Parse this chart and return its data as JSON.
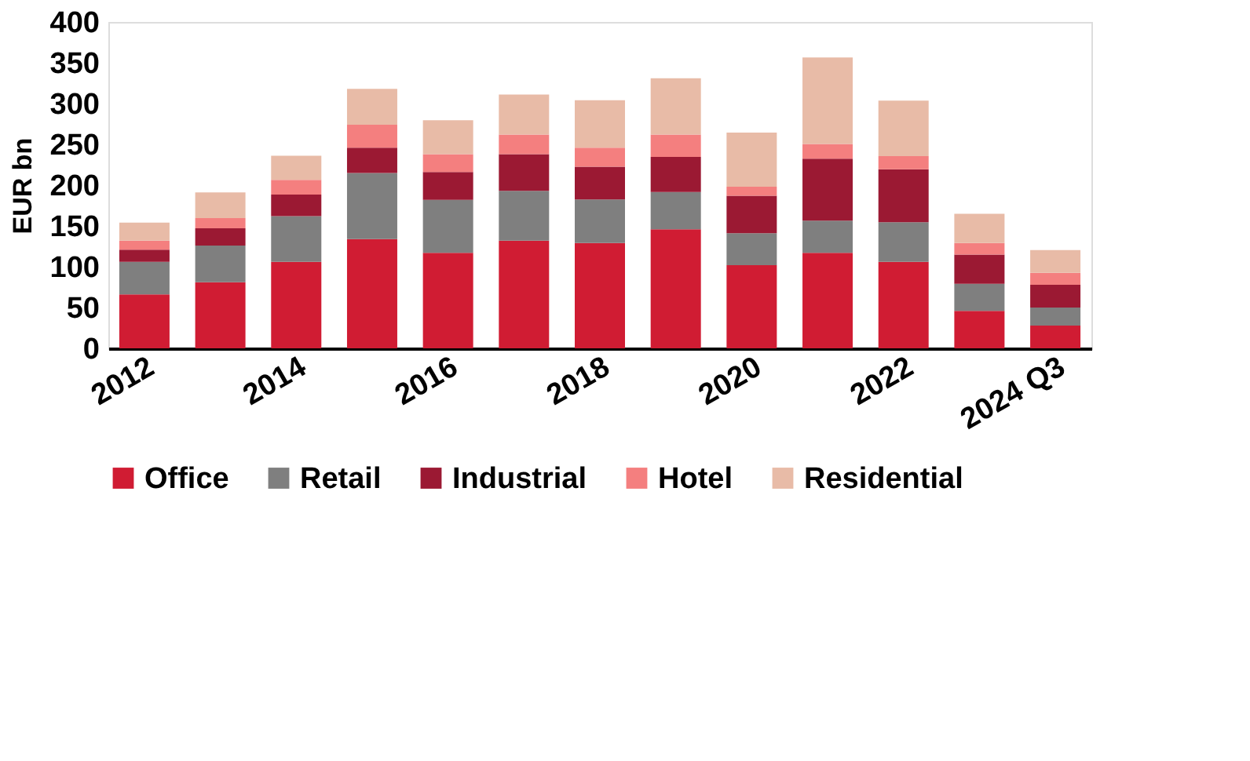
{
  "chart_data": {
    "type": "bar",
    "stacked": true,
    "ylabel": "EUR bn",
    "categories": [
      "2012",
      null,
      "2014",
      null,
      "2016",
      null,
      "2018",
      null,
      "2020",
      null,
      "2022",
      null,
      "2024 Q3"
    ],
    "series": [
      {
        "name": "Office",
        "color": "#d01c33",
        "values": [
          66,
          81,
          106,
          134,
          117,
          132,
          129,
          146,
          102,
          117,
          106,
          46,
          28
        ]
      },
      {
        "name": "Retail",
        "color": "#7f7f7f",
        "values": [
          40,
          45,
          56,
          81,
          65,
          61,
          53.5,
          45.5,
          39,
          39.5,
          48.5,
          33,
          22
        ]
      },
      {
        "name": "Industrial",
        "color": "#9b1933",
        "values": [
          15,
          21,
          26.5,
          31,
          34,
          45,
          40,
          43,
          46,
          76,
          65,
          36,
          28
        ]
      },
      {
        "name": "Hotel",
        "color": "#f47f7f",
        "values": [
          11,
          12.5,
          18,
          28,
          22,
          24,
          23.5,
          27.5,
          11,
          18,
          16,
          14,
          14.5
        ]
      },
      {
        "name": "Residential",
        "color": "#e8bba7",
        "values": [
          22,
          31.5,
          29.5,
          44,
          41.5,
          49,
          58,
          69,
          66.5,
          106,
          68,
          36,
          28
        ]
      }
    ],
    "ylim": [
      0,
      400
    ],
    "yticks": [
      0,
      50,
      100,
      150,
      200,
      250,
      300,
      350,
      400
    ],
    "grid": false,
    "legend": "bottom"
  }
}
